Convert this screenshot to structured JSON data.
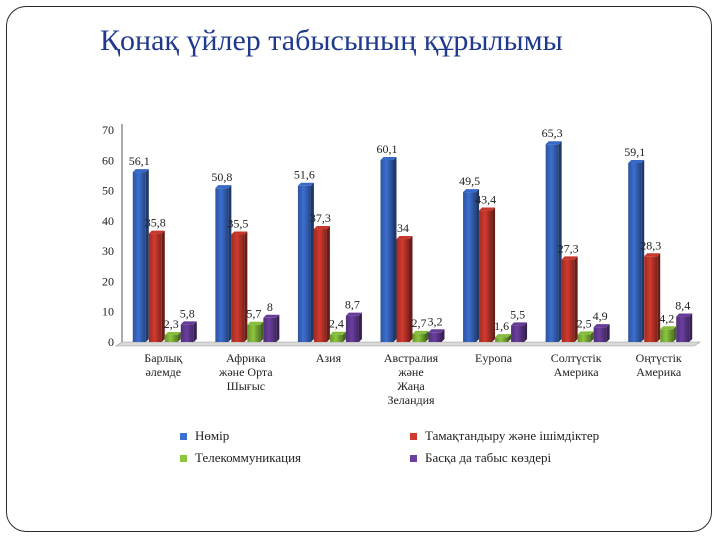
{
  "slide": {
    "title": "Қонақ үйлер табысының құрылымы"
  },
  "chart_data": {
    "type": "bar",
    "ylim": [
      0,
      70
    ],
    "yticks": [
      0,
      10,
      20,
      30,
      40,
      50,
      60,
      70
    ],
    "grid": false,
    "legend_position": "bottom",
    "categories": [
      [
        "Барлық",
        "әлемде"
      ],
      [
        "Африка",
        "және Орта",
        "Шығыс"
      ],
      [
        "Азия"
      ],
      [
        "Австралия",
        "және",
        "Жаңа",
        "Зеландия"
      ],
      [
        "Еуропа"
      ],
      [
        "Солтүстік",
        "Америка"
      ],
      [
        "Оңтүстік",
        "Америка"
      ]
    ],
    "series": [
      {
        "name": "Нөмір",
        "color": "#3c6fd1",
        "values": [
          56.1,
          50.8,
          51.6,
          60.1,
          49.5,
          65.3,
          59.1
        ]
      },
      {
        "name": "Тамақтандыру және ішімдіктер",
        "color": "#d23a2e",
        "values": [
          35.8,
          35.5,
          37.3,
          34,
          43.4,
          27.3,
          28.3
        ]
      },
      {
        "name": "Телекоммуникация",
        "color": "#8cc63e",
        "values": [
          2.3,
          5.7,
          2.4,
          2.7,
          1.6,
          2.5,
          4.2
        ]
      },
      {
        "name": "Басқа да табыс көздері",
        "color": "#6b3fa0",
        "values": [
          5.8,
          8,
          8.7,
          3.2,
          5.5,
          4.9,
          8.4
        ]
      }
    ],
    "value_labels": [
      [
        "56,1",
        "50,8",
        "51,6",
        "60,1",
        "49,5",
        "65,3",
        "59,1"
      ],
      [
        "35,8",
        "35,5",
        "37,3",
        "34",
        "43,4",
        "27,3",
        "28,3"
      ],
      [
        "2,3",
        "5,7",
        "2,4",
        "2,7",
        "1,6",
        "2,5",
        "4,2"
      ],
      [
        "5,8",
        "8",
        "8,7",
        "3,2",
        "5,5",
        "4,9",
        "8,4"
      ]
    ]
  }
}
